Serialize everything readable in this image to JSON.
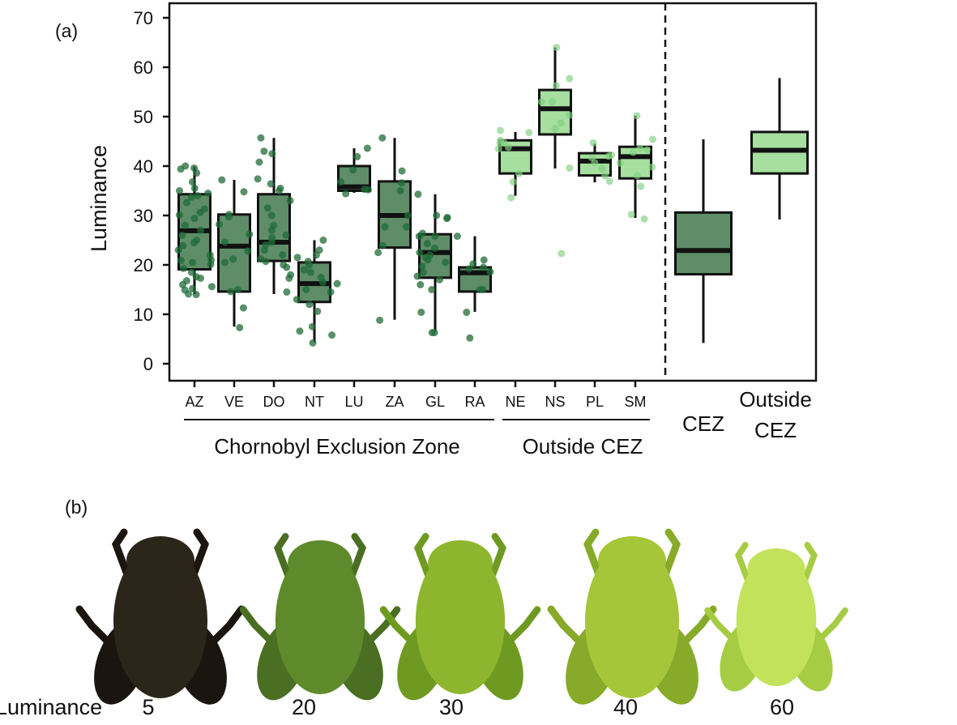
{
  "panel_a_label": "(a)",
  "panel_b_label": "(b)",
  "chart_data": {
    "type": "box",
    "ylabel": "Luminance",
    "ylim": [
      0,
      70
    ],
    "yticks": [
      0,
      10,
      20,
      30,
      40,
      50,
      60,
      70
    ],
    "grid": false,
    "categories": [
      "AZ",
      "VE",
      "DO",
      "NT",
      "LU",
      "ZA",
      "GL",
      "RA",
      "NE",
      "NS",
      "PL",
      "SM"
    ],
    "groups": [
      {
        "label": "Chornobyl Exclusion Zone",
        "members": [
          "AZ",
          "VE",
          "DO",
          "NT",
          "LU",
          "ZA",
          "GL",
          "RA"
        ],
        "color": "#2e7d46"
      },
      {
        "label": "Outside CEZ",
        "members": [
          "NE",
          "NS",
          "PL",
          "SM"
        ],
        "color": "#8fd88f"
      }
    ],
    "boxes": [
      {
        "cat": "AZ",
        "min": 14.1,
        "q1": 19.1,
        "median": 26.9,
        "q3": 34.3,
        "max": 39.9,
        "zone": "CEZ",
        "points": [
          39.6,
          38.6,
          39.4,
          40,
          36.8,
          35.5,
          35,
          34.5,
          34,
          33.7,
          32.6,
          31.3,
          30.6,
          30.1,
          29.4,
          28,
          27,
          26,
          25,
          24.5,
          23.9,
          23,
          22,
          21,
          20.9,
          20.5,
          20.1,
          19.3,
          18.5,
          17.6,
          17.3,
          16.8,
          16,
          15.6,
          15.2,
          14.9,
          14,
          14.1
        ]
      },
      {
        "cat": "VE",
        "min": 7.5,
        "q1": 14.6,
        "median": 23.8,
        "q3": 30.2,
        "max": 37.2,
        "zone": "CEZ",
        "points": [
          37.2,
          34.8,
          30.2,
          29.7,
          28.2,
          26.2,
          24.6,
          22.8,
          21.2,
          20.5,
          15,
          14.6,
          11.3,
          7.3
        ]
      },
      {
        "cat": "DO",
        "min": 14.1,
        "q1": 20.8,
        "median": 24.6,
        "q3": 34.3,
        "max": 45.7,
        "zone": "CEZ",
        "points": [
          45.7,
          43,
          42.5,
          40.8,
          37.4,
          36.4,
          35.5,
          35,
          33,
          31.5,
          30,
          28,
          27,
          26,
          25.5,
          24.6,
          24,
          23,
          22,
          21.2,
          20.7,
          20,
          19.5,
          18,
          17.3,
          14.5
        ]
      },
      {
        "cat": "NT",
        "min": 4.3,
        "q1": 12.5,
        "median": 16.2,
        "q3": 20.5,
        "max": 25,
        "zone": "CEZ",
        "points": [
          25,
          23,
          22,
          21.5,
          20.7,
          20,
          19,
          18.5,
          17.5,
          16.5,
          15,
          14.5,
          13,
          12,
          10.6,
          7.5,
          6.6,
          5.8,
          4.2
        ]
      },
      {
        "cat": "LU",
        "min": 34.6,
        "q1": 35,
        "median": 35.8,
        "q3": 40,
        "max": 43.6,
        "zone": "CEZ",
        "points": [
          43.6,
          41.9,
          39.2,
          36.8,
          35.3,
          35.2,
          34.4,
          16.2
        ]
      },
      {
        "cat": "ZA",
        "min": 8.9,
        "q1": 23.5,
        "median": 30,
        "q3": 36.9,
        "max": 45.7,
        "zone": "CEZ",
        "points": [
          45.7,
          39,
          36.6,
          35,
          30,
          27.7,
          27.7,
          23.9,
          22.5,
          8.8
        ]
      },
      {
        "cat": "GL",
        "min": 6.6,
        "q1": 17.4,
        "median": 22.5,
        "q3": 26.2,
        "max": 34.3,
        "zone": "CEZ",
        "points": [
          34.3,
          30,
          29.4,
          29.6,
          26.4,
          25.8,
          25.8,
          24.3,
          23.4,
          22.5,
          22,
          21.5,
          21,
          20.5,
          19.7,
          18.5,
          17.7,
          17,
          16,
          15,
          10.4,
          6.3,
          6.3
        ]
      },
      {
        "cat": "RA",
        "min": 10.5,
        "q1": 14.6,
        "median": 18.4,
        "q3": 19.5,
        "max": 25.8,
        "zone": "CEZ",
        "points": [
          25.8,
          21,
          20.2,
          19.5,
          19.2,
          18.6,
          15,
          15,
          10.4,
          5.2
        ]
      },
      {
        "cat": "NE",
        "min": 34,
        "q1": 38.5,
        "median": 43.5,
        "q3": 45.2,
        "max": 46.9,
        "zone": "Outside",
        "points": [
          47.2,
          46.8,
          45.2,
          44.7,
          44.7,
          43.8,
          43.5,
          38.5,
          36.8,
          33.6
        ]
      },
      {
        "cat": "NS",
        "min": 39.5,
        "q1": 46.4,
        "median": 51.6,
        "q3": 55.4,
        "max": 64,
        "zone": "Outside",
        "points": [
          64,
          57.7,
          56.3,
          53.1,
          53,
          50.3,
          48.7,
          47.6,
          39.6,
          22.3
        ]
      },
      {
        "cat": "PL",
        "min": 36.7,
        "q1": 38.1,
        "median": 41,
        "q3": 42.6,
        "max": 44.5,
        "zone": "Outside",
        "points": [
          44.7,
          42.2,
          42,
          41.7,
          40.7,
          39.5,
          38,
          36.9
        ]
      },
      {
        "cat": "SM",
        "min": 29.5,
        "q1": 37.5,
        "median": 41.9,
        "q3": 43.9,
        "max": 50.2,
        "zone": "Outside",
        "points": [
          50.2,
          45.4,
          43.6,
          43.3,
          42.8,
          40.6,
          39.8,
          38.1,
          35.9,
          30.2,
          29.3
        ]
      }
    ],
    "summary_boxes": [
      {
        "cat": "CEZ",
        "label": "CEZ",
        "min": 4.2,
        "q1": 18.1,
        "median": 22.9,
        "q3": 30.6,
        "max": 45.4,
        "color": "#5e8d68"
      },
      {
        "cat": "Outside CEZ",
        "label_lines": [
          "Outside",
          "CEZ"
        ],
        "min": 29.2,
        "q1": 38.5,
        "median": 43.2,
        "q3": 46.9,
        "max": 57.8,
        "color": "#a6df9f"
      }
    ],
    "box_fill_cez": "#5e8d68",
    "box_fill_outside": "#a6df9f",
    "point_cez": "#1f6b37",
    "point_outside": "#7fd07f"
  },
  "frogs": {
    "row_label": "Luminance",
    "items": [
      {
        "luminance": "5",
        "color": "#2b2619",
        "shade": "#1a160f"
      },
      {
        "luminance": "20",
        "color": "#5f8a2c",
        "shade": "#4a6e22"
      },
      {
        "luminance": "30",
        "color": "#8db62e",
        "shade": "#6f9a22"
      },
      {
        "luminance": "40",
        "color": "#a6c63a",
        "shade": "#88aa2a"
      },
      {
        "luminance": "60",
        "color": "#c3e25c",
        "shade": "#a6cc44"
      }
    ]
  }
}
